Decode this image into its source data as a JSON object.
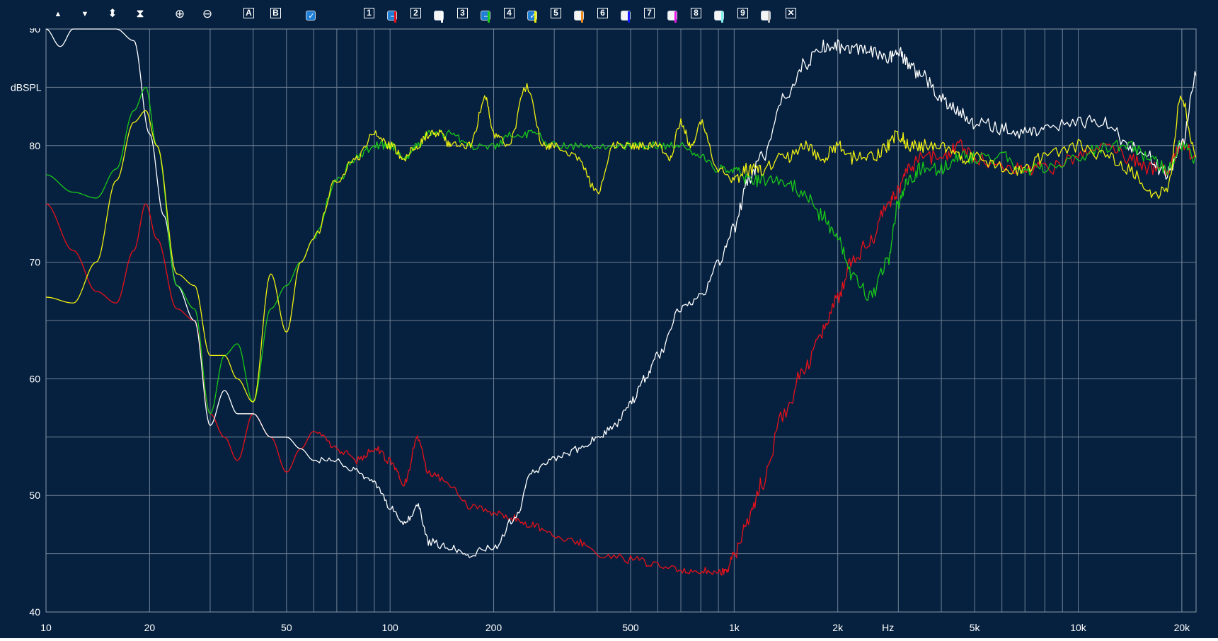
{
  "toolbar": {
    "buttons": [
      {
        "name": "shift-up-button",
        "icon": "triangle-up-icon",
        "glyph": "▲"
      },
      {
        "name": "shift-down-button",
        "icon": "triangle-down-icon",
        "glyph": "▼"
      },
      {
        "name": "expand-button",
        "icon": "expand-vertical-icon",
        "glyph": "⬍"
      },
      {
        "name": "compress-button",
        "icon": "compress-vertical-icon",
        "glyph": "⧗"
      },
      {
        "name": "zoom-in-button",
        "icon": "zoom-in-icon",
        "glyph": "⊕"
      },
      {
        "name": "zoom-out-button",
        "icon": "zoom-out-icon",
        "glyph": "⊖"
      }
    ],
    "cursor_a": "A",
    "cursor_b": "B",
    "traces": [
      {
        "num": "1",
        "color": "#e8101a",
        "state": "minus"
      },
      {
        "num": "2",
        "color": "#ffffff",
        "state": "empty"
      },
      {
        "num": "3",
        "color": "#18c818",
        "state": "minus"
      },
      {
        "num": "4",
        "color": "#f0f010",
        "state": "check"
      },
      {
        "num": "5",
        "color": "#f08a1a",
        "state": "empty"
      },
      {
        "num": "6",
        "color": "#1a1aff",
        "state": "empty"
      },
      {
        "num": "7",
        "color": "#e818e8",
        "state": "empty"
      },
      {
        "num": "8",
        "color": "#80f0f0",
        "state": "empty"
      },
      {
        "num": "9",
        "color": "#c0c0c0",
        "state": "empty"
      }
    ],
    "close": "✕"
  },
  "chart_data": {
    "type": "line",
    "ylabel": "dBSPL",
    "xlabel": "Hz",
    "xscale": "log",
    "xlim": [
      10,
      22000
    ],
    "ylim": [
      40,
      90
    ],
    "grid": true,
    "yticks": [
      40,
      50,
      60,
      70,
      80,
      90
    ],
    "xtick_labels": [
      {
        "f": 10,
        "label": "10"
      },
      {
        "f": 20,
        "label": "20"
      },
      {
        "f": 50,
        "label": "50"
      },
      {
        "f": 100,
        "label": "100"
      },
      {
        "f": 200,
        "label": "200"
      },
      {
        "f": 500,
        "label": "500"
      },
      {
        "f": 1000,
        "label": "1k"
      },
      {
        "f": 2000,
        "label": "2k"
      },
      {
        "f": 5000,
        "label": "5k"
      },
      {
        "f": 10000,
        "label": "10k"
      },
      {
        "f": 20000,
        "label": "20k"
      }
    ],
    "unit_label_freq": 2800,
    "series": [
      {
        "color": "#e8101a",
        "x": [
          10,
          12,
          14,
          16,
          18,
          19.5,
          21,
          24,
          27,
          30,
          33,
          36,
          40,
          45,
          50,
          55,
          60,
          70,
          80,
          90,
          100,
          110,
          120,
          130,
          150,
          170,
          200,
          230,
          260,
          300,
          350,
          400,
          500,
          600,
          700,
          800,
          900,
          950,
          1000,
          1100,
          1200,
          1400,
          1600,
          1800,
          2000,
          2200,
          2500,
          2800,
          3000,
          3200,
          3500,
          4000,
          4500,
          5000,
          6000,
          7000,
          8000,
          10000,
          12000,
          14000,
          16000,
          18000,
          20000,
          22000
        ],
        "y": [
          75,
          71,
          67.5,
          66.5,
          71,
          75,
          72,
          66,
          65,
          57,
          55,
          53,
          57,
          55,
          52,
          54,
          55.5,
          54,
          53,
          54,
          53,
          51,
          55,
          52,
          51,
          49,
          48.5,
          48,
          47.5,
          46.5,
          46,
          45,
          44.5,
          44,
          43.5,
          43.5,
          43.5,
          43.5,
          45,
          48,
          51,
          57,
          61,
          64,
          67,
          70,
          72,
          75,
          76,
          78,
          79,
          79,
          80,
          79,
          78,
          78,
          78,
          79,
          80,
          79,
          78,
          78,
          80,
          79
        ]
      },
      {
        "color": "#ffffff",
        "x": [
          10,
          11,
          12,
          14,
          16,
          18,
          20,
          22,
          24,
          27,
          30,
          33,
          36,
          40,
          45,
          50,
          55,
          60,
          70,
          80,
          90,
          100,
          110,
          120,
          130,
          150,
          170,
          200,
          230,
          260,
          300,
          350,
          400,
          450,
          500,
          550,
          600,
          700,
          800,
          900,
          1000,
          1100,
          1200,
          1400,
          1600,
          1800,
          2000,
          2200,
          2500,
          2800,
          3000,
          3200,
          3500,
          4000,
          4500,
          5000,
          6000,
          7000,
          8000,
          10000,
          12000,
          14000,
          16000,
          18000,
          20000,
          22000
        ],
        "y": [
          90,
          88.5,
          90,
          90,
          90,
          89,
          81,
          74,
          68,
          65,
          56,
          59,
          57,
          57,
          55,
          55,
          54,
          53,
          53,
          52,
          51,
          49,
          47.5,
          49,
          46,
          45.5,
          45,
          45.5,
          48,
          52,
          53,
          54,
          55,
          56,
          58,
          60,
          62,
          66,
          67,
          70,
          73,
          77,
          79,
          84,
          87,
          88.5,
          88.5,
          88.5,
          88,
          87.5,
          88,
          87,
          86,
          84,
          83,
          82,
          81.5,
          81,
          81.5,
          82,
          82,
          80,
          79,
          77.5,
          80,
          86
        ]
      },
      {
        "color": "#18c818",
        "x": [
          10,
          12,
          14,
          16,
          18,
          19.5,
          21,
          24,
          27,
          30,
          33,
          36,
          40,
          45,
          50,
          55,
          60,
          70,
          80,
          90,
          100,
          110,
          120,
          130,
          150,
          170,
          200,
          230,
          260,
          300,
          350,
          400,
          500,
          600,
          700,
          800,
          900,
          1000,
          1100,
          1200,
          1400,
          1600,
          1800,
          2000,
          2200,
          2500,
          2800,
          3000,
          3200,
          3500,
          4000,
          4500,
          5000,
          6000,
          7000,
          8000,
          10000,
          12000,
          14000,
          16000,
          18000,
          20000,
          22000
        ],
        "y": [
          77.5,
          76,
          75.5,
          78,
          83,
          85,
          80,
          68,
          66,
          57,
          62,
          63,
          58,
          66,
          68,
          70,
          72,
          77,
          79,
          80,
          80,
          79,
          80,
          81,
          81,
          80,
          80,
          81,
          81,
          80,
          80,
          80,
          80,
          80,
          80,
          79,
          78,
          78,
          77,
          77,
          77,
          76,
          74,
          72,
          69,
          67,
          70,
          75,
          77,
          78,
          78,
          79,
          79,
          79,
          78,
          78,
          79,
          80,
          80,
          79,
          78,
          80,
          79
        ]
      },
      {
        "color": "#f0f010",
        "x": [
          10,
          12,
          14,
          16,
          18,
          19.5,
          21,
          24,
          27,
          30,
          33,
          36,
          40,
          45,
          50,
          55,
          60,
          70,
          80,
          90,
          100,
          110,
          120,
          130,
          140,
          150,
          170,
          190,
          200,
          220,
          250,
          280,
          300,
          350,
          400,
          450,
          500,
          550,
          600,
          650,
          700,
          750,
          800,
          900,
          1000,
          1100,
          1200,
          1400,
          1600,
          1800,
          2000,
          2200,
          2500,
          2800,
          3000,
          3200,
          3500,
          4000,
          4500,
          5000,
          6000,
          7000,
          8000,
          10000,
          12000,
          14000,
          16000,
          18000,
          20000,
          22000
        ],
        "y": [
          67,
          66.5,
          70,
          77,
          82,
          83,
          80,
          69,
          68,
          62,
          62,
          60,
          58,
          69,
          64,
          70,
          72,
          77,
          79,
          81,
          80,
          79,
          80,
          81,
          81,
          80,
          80,
          84,
          81,
          80,
          85,
          80,
          80,
          79,
          76,
          80,
          80,
          80,
          80,
          79,
          82,
          80,
          82,
          78,
          77,
          78,
          78,
          79,
          80,
          79,
          80,
          79,
          79,
          80,
          81,
          80,
          80,
          80,
          79,
          79,
          78,
          78,
          79,
          80,
          79,
          78,
          76,
          76,
          84,
          79
        ]
      }
    ]
  }
}
